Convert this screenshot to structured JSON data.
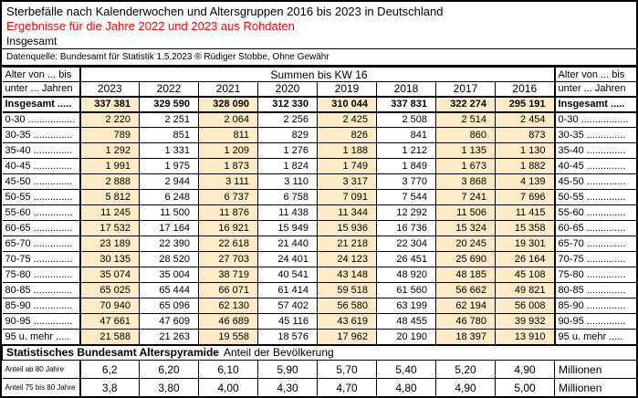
{
  "header": {
    "title": "Sterbefälle nach Kalenderwochen und Altersgruppen 2016 bis 2023 in Deutschland",
    "subtitle": "Ergebnisse für die Jahre 2022 und 2023 aus Rohdaten",
    "scope": "Insgesamt",
    "source_note": "Datenquelle: Bundesamt für Statistik 1.5.2023 ® Rüdiger Stobbe, Ohne Gewähr"
  },
  "table": {
    "corner_line1": "Alter von ... bis",
    "corner_line2": "unter ... Jahren",
    "span_header": "Summen bis KW 16",
    "years": [
      "2023",
      "2022",
      "2021",
      "2020",
      "2019",
      "2018",
      "2017",
      "2016"
    ],
    "total": {
      "label": "Insgesamt .....",
      "values": [
        "337 381",
        "329 590",
        "328 090",
        "312 330",
        "310 044",
        "337 831",
        "322 274",
        "295 191"
      ]
    },
    "rows": [
      {
        "label": "0-30 .................",
        "values": [
          "2 220",
          "2 251",
          "2 064",
          "2 256",
          "2 425",
          "2 508",
          "2 514",
          "2 454"
        ]
      },
      {
        "label": "30-35 ..............",
        "values": [
          "789",
          "851",
          "811",
          "829",
          "826",
          "841",
          "860",
          "873"
        ]
      },
      {
        "label": "35-40 ..............",
        "values": [
          "1 292",
          "1 331",
          "1 209",
          "1 276",
          "1 188",
          "1 212",
          "1 135",
          "1 130"
        ]
      },
      {
        "label": "40-45 ..............",
        "values": [
          "1 991",
          "1 975",
          "1 873",
          "1 824",
          "1 749",
          "1 849",
          "1 673",
          "1 882"
        ]
      },
      {
        "label": "45-50 ..............",
        "values": [
          "2 888",
          "2 944",
          "3 111",
          "3 110",
          "3 317",
          "3 770",
          "3 868",
          "4 139"
        ]
      },
      {
        "label": "50-55 ..............",
        "values": [
          "5 812",
          "6 248",
          "6 737",
          "6 758",
          "7 091",
          "7 544",
          "7 241",
          "7 696"
        ]
      },
      {
        "label": "55-60 ..............",
        "values": [
          "11 245",
          "11 500",
          "11 876",
          "11 438",
          "11 344",
          "12 292",
          "11 506",
          "11 415"
        ]
      },
      {
        "label": "60-65 ..............",
        "values": [
          "17 532",
          "17 164",
          "16 921",
          "15 949",
          "15 936",
          "16 736",
          "15 324",
          "15 358"
        ]
      },
      {
        "label": "65-70 ..............",
        "values": [
          "23 189",
          "22 390",
          "22 618",
          "21 440",
          "21 218",
          "22 304",
          "20 245",
          "19 301"
        ]
      },
      {
        "label": "70-75 ..............",
        "values": [
          "30 135",
          "28 520",
          "27 703",
          "24 401",
          "24 123",
          "26 451",
          "25 690",
          "26 164"
        ]
      },
      {
        "label": "75-80 ..............",
        "values": [
          "35 074",
          "35 004",
          "38 719",
          "40 541",
          "43 148",
          "48 920",
          "48 185",
          "45 108"
        ]
      },
      {
        "label": "80-85 ..............",
        "values": [
          "65 025",
          "65 444",
          "66 071",
          "61 414",
          "59 518",
          "61 560",
          "56 662",
          "49 821"
        ]
      },
      {
        "label": "85-90 ..............",
        "values": [
          "70 940",
          "65 096",
          "62 130",
          "57 402",
          "56 580",
          "63 199",
          "62 194",
          "56 008"
        ]
      },
      {
        "label": "90-95 ..............",
        "values": [
          "47 661",
          "47 609",
          "46 689",
          "45 116",
          "43 619",
          "48 455",
          "46 780",
          "39 932"
        ]
      },
      {
        "label": "95 u. mehr .....",
        "values": [
          "21 588",
          "21 263",
          "19 558",
          "18 576",
          "17 962",
          "20 190",
          "18 397",
          "13 910"
        ]
      }
    ]
  },
  "footer": {
    "title_bold": "Statistisches Bundesamt Alterspyramide",
    "title_rest": "Anteil der Bevölkerung",
    "rows": [
      {
        "label": "Anteil ab 80 Jahre",
        "values": [
          "6,2",
          "6,20",
          "6,10",
          "5,90",
          "5,70",
          "5,40",
          "5,20",
          "4,90"
        ],
        "unit": "Millionen"
      },
      {
        "label": "Anteil 75 bis 80 Jahre",
        "values": [
          "3,8",
          "3,80",
          "4,00",
          "4,30",
          "4,70",
          "4,80",
          "4,90",
          "5,00"
        ],
        "unit": "Millionen"
      }
    ]
  },
  "colors": {
    "accent_beige": "#fdeac6",
    "subtitle_red": "#ff0000",
    "border_black": "#000000"
  }
}
